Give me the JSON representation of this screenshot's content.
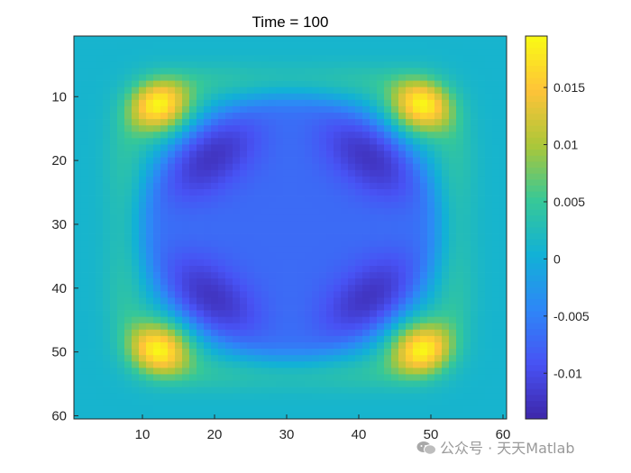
{
  "chart_data": {
    "type": "heatmap",
    "title": "Time = 100",
    "grid_size": 60,
    "xlim": [
      0.5,
      60.5
    ],
    "ylim": [
      0.5,
      60.5
    ],
    "y_direction": "reversed",
    "x_ticks": [
      10,
      20,
      30,
      40,
      50,
      60
    ],
    "y_ticks": [
      10,
      20,
      30,
      40,
      50,
      60
    ],
    "colormap": "parula",
    "color_range": [
      -0.014,
      0.0195
    ],
    "colorbar_ticks": [
      {
        "value": 0.015,
        "label": "0.015"
      },
      {
        "value": 0.01,
        "label": "0.01"
      },
      {
        "value": 0.005,
        "label": "0.005"
      },
      {
        "value": 0,
        "label": "0"
      },
      {
        "value": -0.005,
        "label": "-0.005"
      },
      {
        "value": -0.01,
        "label": "-0.01"
      }
    ],
    "field_description": {
      "background_value": 0.001,
      "inner_disk_value": -0.007,
      "dark_ring_value": -0.0125,
      "corner_peak_value": 0.019,
      "corner_peak_centers": [
        [
          12,
          11
        ],
        [
          49,
          11
        ],
        [
          12,
          50
        ],
        [
          49,
          50
        ]
      ],
      "center": [
        30.5,
        30.5
      ]
    }
  },
  "watermark": {
    "text": "公众号 · 天天Matlab",
    "icon": "wechat-icon"
  }
}
